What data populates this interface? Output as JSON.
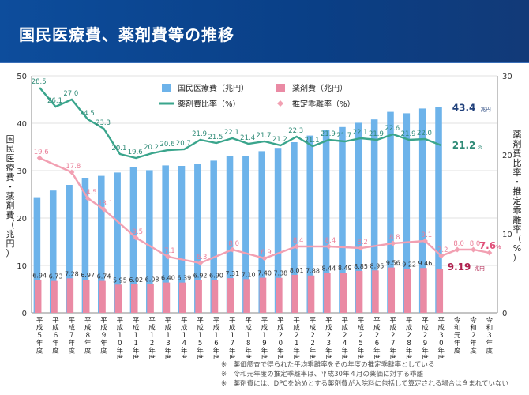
{
  "page": {
    "title": "国民医療費、薬剤費等の推移"
  },
  "notes": [
    "※　薬価調査で得られた平均乖離率をその年度の推定乖離率としている",
    "※　令和元年度の推定乖離率は、平成30年４月の薬価に対する乖離",
    "※　薬剤費には、DPCを始めとする薬剤費が入院料に包括して算定される場合は含まれていない"
  ],
  "colors": {
    "medical": "#6db3ea",
    "drug": "#ea8aa4",
    "ratio": "#3aa58c",
    "deviation": "#f2a0b2",
    "header": "#0d4d9c"
  },
  "chart_data": {
    "type": "bar",
    "categories": [
      "平成５年度",
      "平成６年度",
      "平成７年度",
      "平成８年度",
      "平成９年度",
      "平成10年度",
      "平成11年度",
      "平成12年度",
      "平成13年度",
      "平成14年度",
      "平成15年度",
      "平成16年度",
      "平成17年度",
      "平成18年度",
      "平成19年度",
      "平成20年度",
      "平成21年度",
      "平成22年度",
      "平成23年度",
      "平成24年度",
      "平成25年度",
      "平成26年度",
      "平成27年度",
      "平成28年度",
      "平成29年度",
      "平成30年度",
      "令和元年度",
      "令和２年度",
      "令和３年度"
    ],
    "series": [
      {
        "name": "国民医療費（兆円）",
        "type": "bar",
        "axis": "left",
        "values": [
          24.4,
          25.8,
          27.0,
          28.5,
          28.9,
          29.6,
          30.7,
          30.1,
          31.1,
          31.0,
          31.5,
          32.1,
          33.1,
          33.1,
          34.1,
          34.8,
          36.0,
          37.4,
          38.6,
          39.2,
          40.1,
          40.8,
          42.4,
          42.1,
          43.1,
          43.4,
          null,
          null,
          null
        ]
      },
      {
        "name": "薬剤費（兆円）",
        "type": "bar",
        "axis": "left",
        "values": [
          6.94,
          6.73,
          7.28,
          6.97,
          6.74,
          5.95,
          6.02,
          6.08,
          6.4,
          6.39,
          6.92,
          6.9,
          7.31,
          7.1,
          7.4,
          7.38,
          8.01,
          7.88,
          8.44,
          8.49,
          8.85,
          8.95,
          9.56,
          9.22,
          9.46,
          9.19,
          null,
          null,
          null
        ]
      },
      {
        "name": "薬剤費比率（%）",
        "type": "line",
        "axis": "right",
        "values": [
          28.5,
          26.1,
          27.0,
          24.5,
          23.3,
          20.1,
          19.6,
          20.2,
          20.6,
          20.7,
          21.9,
          21.5,
          22.1,
          21.4,
          21.7,
          21.2,
          22.3,
          21.1,
          21.9,
          21.7,
          22.1,
          21.9,
          22.6,
          21.9,
          22.0,
          21.2,
          null,
          null,
          null
        ]
      },
      {
        "name": "推定乖離率（%）",
        "type": "line",
        "axis": "right",
        "values": [
          19.6,
          null,
          17.8,
          14.5,
          13.1,
          null,
          9.5,
          null,
          7.1,
          null,
          6.3,
          null,
          8.0,
          null,
          6.9,
          null,
          8.4,
          null,
          8.4,
          null,
          8.2,
          null,
          8.8,
          null,
          9.1,
          7.2,
          8.0,
          8.0,
          7.6
        ]
      }
    ],
    "ratio_labels": [
      "28.5",
      "26.1",
      "27.0",
      "24.5",
      "23.3",
      "20.1",
      "19.6",
      "20.2",
      "20.6",
      "20.7",
      "21.9",
      "21.5",
      "22.1",
      "21.4",
      "21.7",
      "21.2",
      "22.3",
      "21.1",
      "21.9",
      "21.7",
      "22.1",
      "21.9",
      "22.6",
      "21.9",
      "22.0"
    ],
    "drug_labels": [
      "6.94",
      "6.73",
      "7.28",
      "6.97",
      "6.74",
      "5.95",
      "6.02",
      "6.08",
      "6.40",
      "6.39",
      "6.92",
      "6.90",
      "7.31",
      "7.10",
      "7.40",
      "7.38",
      "8.01",
      "7.88",
      "8.44",
      "8.49",
      "8.85",
      "8.95",
      "9.56",
      "9.22",
      "9.46"
    ],
    "deviation_labels": [
      "19.6",
      "",
      "17.8",
      "14.5",
      "13.1",
      "",
      "9.5",
      "",
      "7.1",
      "",
      "6.3",
      "",
      "8.0",
      "",
      "6.9",
      "",
      "8.4",
      "",
      "8.4",
      "",
      "8.2",
      "",
      "8.8",
      "",
      "9.1",
      "7.2",
      "8.0",
      "8.0",
      ""
    ],
    "final_values": {
      "medical": "43.4",
      "medical_unit": "兆円",
      "ratio": "21.2",
      "ratio_unit": "%",
      "drug": "9.19",
      "drug_unit": "兆円",
      "deviation": "7.6",
      "deviation_unit": "%"
    },
    "ylabel_left": "国民医療費・薬剤費（兆円）",
    "ylabel_right": "薬剤費比率・推定乖離率（%）",
    "ylim_left": [
      0,
      50
    ],
    "ylim_right": [
      0,
      30
    ],
    "yticks_left": [
      "0",
      "10",
      "20",
      "30",
      "40",
      "50"
    ],
    "yticks_right": [
      "0",
      "10",
      "20",
      "30"
    ],
    "grid": true,
    "legend_position": "top-center"
  }
}
